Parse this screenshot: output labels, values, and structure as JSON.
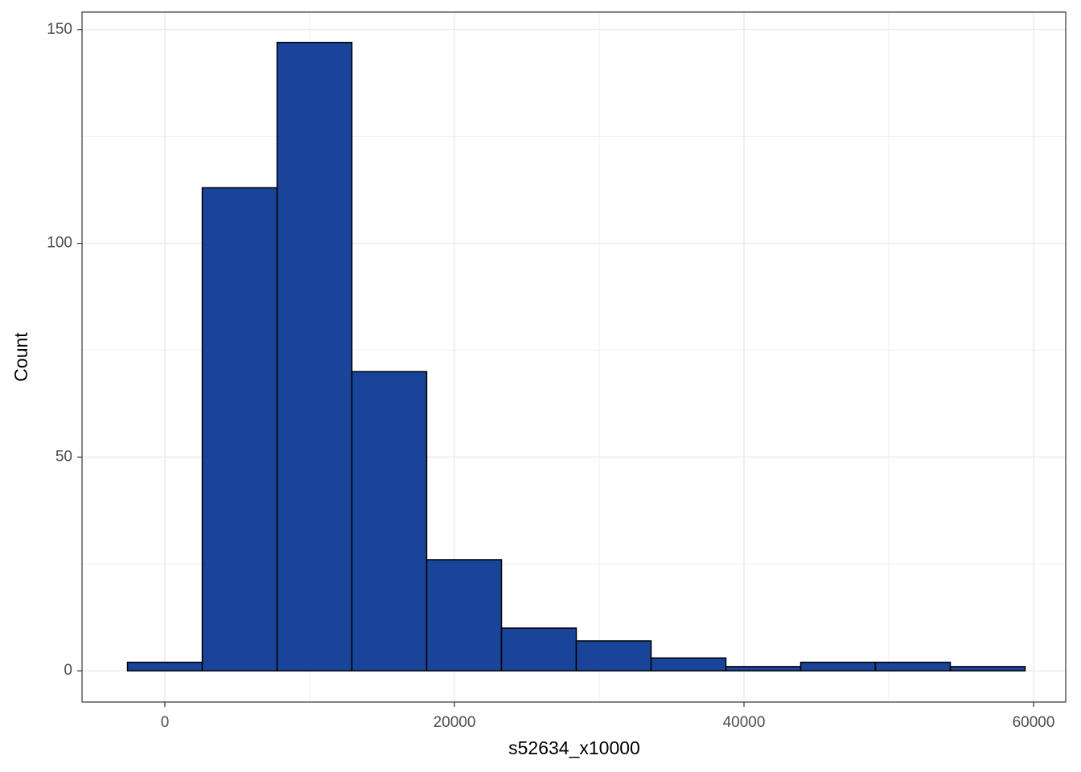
{
  "chart_data": {
    "type": "histogram",
    "x_label": "s52634_x10000",
    "y_label": "Count",
    "bins": [
      -2583,
      2583,
      7750,
      12917,
      18083,
      23250,
      28417,
      33583,
      38750,
      43917,
      49083,
      54250,
      59417
    ],
    "counts": [
      2,
      113,
      147,
      70,
      26,
      10,
      7,
      3,
      1,
      2,
      2,
      1
    ],
    "color": "#1a4499",
    "edge_color": "#000000",
    "xlim": [
      -5722,
      62222
    ],
    "ylim": [
      -7.3,
      154.1
    ],
    "xticks": [
      0,
      20000,
      40000,
      60000
    ],
    "yticks": [
      0,
      50,
      100,
      150
    ],
    "x_minor_grid": [
      10000,
      30000,
      50000
    ],
    "y_minor_grid": [
      25,
      75,
      125
    ],
    "grid": true
  }
}
